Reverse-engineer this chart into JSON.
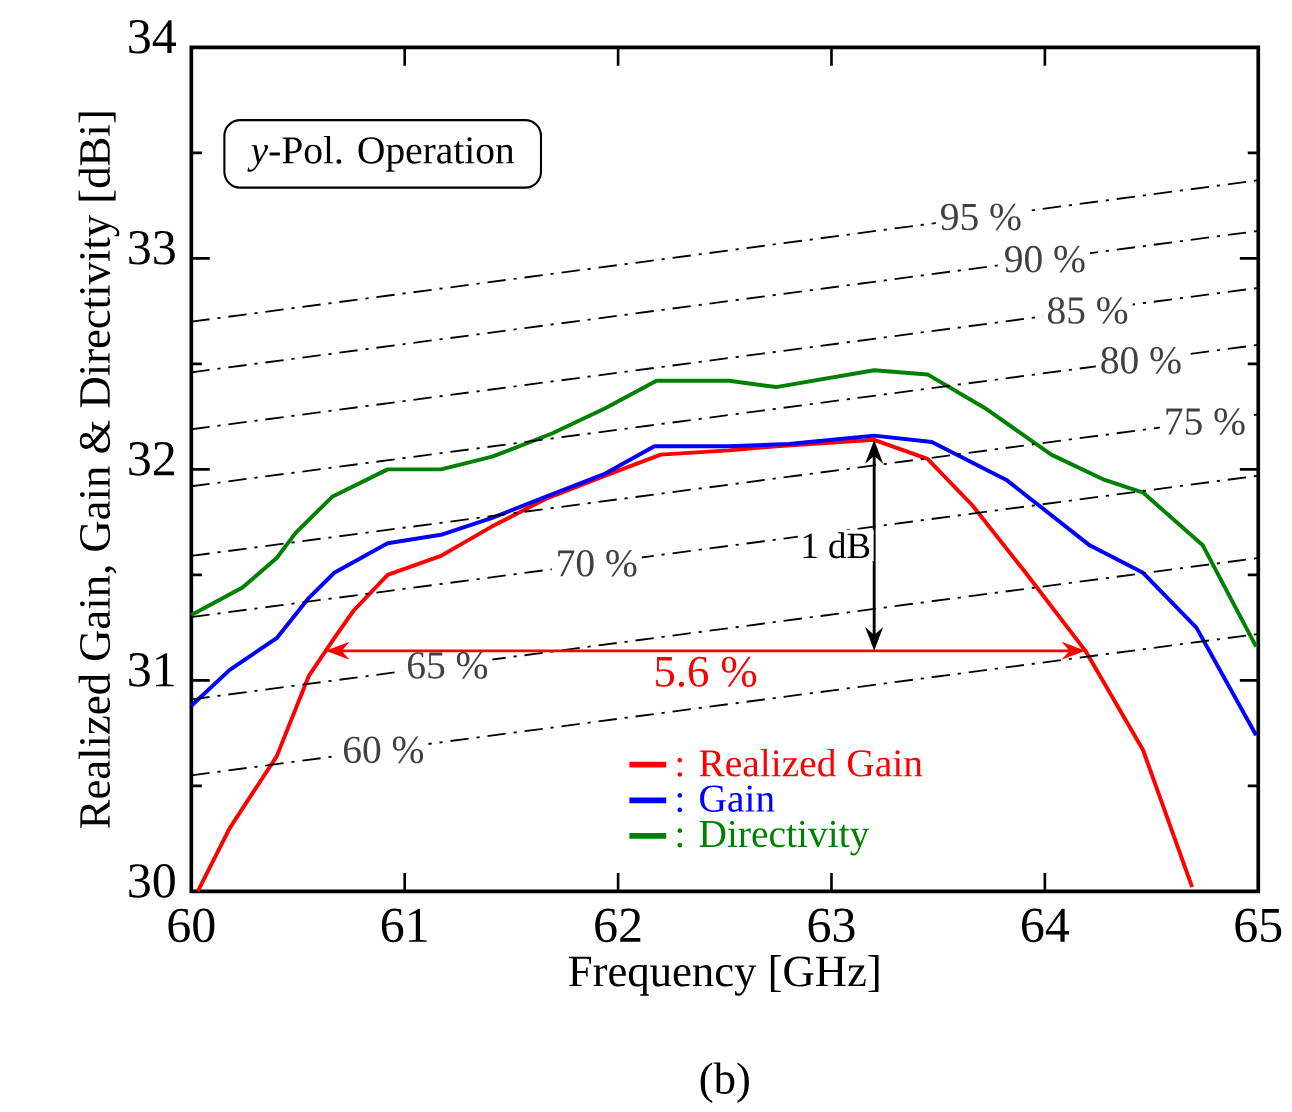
{
  "chart_data": {
    "type": "line",
    "xlabel": "Frequency [GHz]",
    "ylabel": "Realized Gain, Gain & Directivity [dBi]",
    "xlim": [
      60,
      65
    ],
    "ylim": [
      30,
      34
    ],
    "xticks": [
      60,
      61,
      62,
      63,
      64,
      65
    ],
    "yticks": [
      30,
      31,
      32,
      33,
      34
    ],
    "grid": false,
    "legend": "bottom",
    "annotations": [
      "*y*-Pol. Operation",
      "1 dB",
      "5.6 %",
      "(b)"
    ],
    "series": [
      {
        "name": ": Realized Gain",
        "color": "#ff0000",
        "line_style": "solid",
        "x": [
          60.03,
          60.18,
          60.4,
          60.55,
          60.67,
          60.76,
          60.92,
          61.17,
          61.41,
          61.66,
          61.94,
          62.2,
          62.52,
          62.74,
          63.2,
          63.45,
          63.66,
          63.91,
          64.19,
          64.46,
          64.69
        ],
        "values": [
          30.0,
          30.3,
          30.64,
          31.02,
          31.2,
          31.33,
          31.5,
          31.59,
          31.73,
          31.86,
          31.97,
          32.07,
          32.09,
          32.11,
          32.14,
          32.05,
          31.83,
          31.51,
          31.14,
          30.67,
          30.02
        ]
      },
      {
        "name": ": Gain",
        "color": "#0000ff",
        "line_style": "solid",
        "x": [
          60,
          60.18,
          60.4,
          60.55,
          60.67,
          60.92,
          61.17,
          61.41,
          61.66,
          61.94,
          62.17,
          62.52,
          62.8,
          63.2,
          63.47,
          63.82,
          64.21,
          64.46,
          64.71,
          64.99
        ],
        "values": [
          30.88,
          31.05,
          31.2,
          31.39,
          31.51,
          31.65,
          31.69,
          31.77,
          31.87,
          31.98,
          32.11,
          32.11,
          32.12,
          32.16,
          32.13,
          31.95,
          31.64,
          31.51,
          31.25,
          30.74
        ]
      },
      {
        "name": ": Directivity",
        "color": "#008000",
        "line_style": "solid",
        "x": [
          60,
          60.24,
          60.4,
          60.49,
          60.66,
          60.92,
          61.17,
          61.41,
          61.69,
          61.94,
          62.18,
          62.52,
          62.74,
          63.2,
          63.45,
          63.72,
          64.03,
          64.28,
          64.46,
          64.74,
          64.99
        ],
        "values": [
          31.31,
          31.44,
          31.58,
          31.7,
          31.87,
          32.0,
          32.0,
          32.06,
          32.17,
          32.29,
          32.42,
          32.42,
          32.39,
          32.47,
          32.45,
          32.29,
          32.07,
          31.95,
          31.89,
          31.64,
          31.16
        ]
      },
      {
        "name": "95 %",
        "color": "#000000",
        "line_style": "dashed",
        "x": [
          60,
          65
        ],
        "values": [
          32.7,
          33.37
        ]
      },
      {
        "name": "90 %",
        "color": "#000000",
        "line_style": "dashed",
        "x": [
          60,
          65
        ],
        "values": [
          32.46,
          33.13
        ]
      },
      {
        "name": "85 %",
        "color": "#000000",
        "line_style": "dashed",
        "x": [
          60,
          65
        ],
        "values": [
          32.19,
          32.86
        ]
      },
      {
        "name": "80 %",
        "color": "#000000",
        "line_style": "dashed",
        "x": [
          60,
          65
        ],
        "values": [
          31.92,
          32.59
        ]
      },
      {
        "name": "75 %",
        "color": "#000000",
        "line_style": "dashed",
        "x": [
          60,
          65
        ],
        "values": [
          31.59,
          32.26
        ]
      },
      {
        "name": "70 %",
        "color": "#000000",
        "line_style": "dashed",
        "x": [
          60,
          65
        ],
        "values": [
          31.3,
          31.97
        ]
      },
      {
        "name": "65 %",
        "color": "#000000",
        "line_style": "dashed",
        "x": [
          60,
          65
        ],
        "values": [
          30.91,
          31.58
        ]
      },
      {
        "name": "60 %",
        "color": "#000000",
        "line_style": "dashed",
        "x": [
          60,
          65
        ],
        "values": [
          30.55,
          31.22
        ]
      }
    ]
  }
}
